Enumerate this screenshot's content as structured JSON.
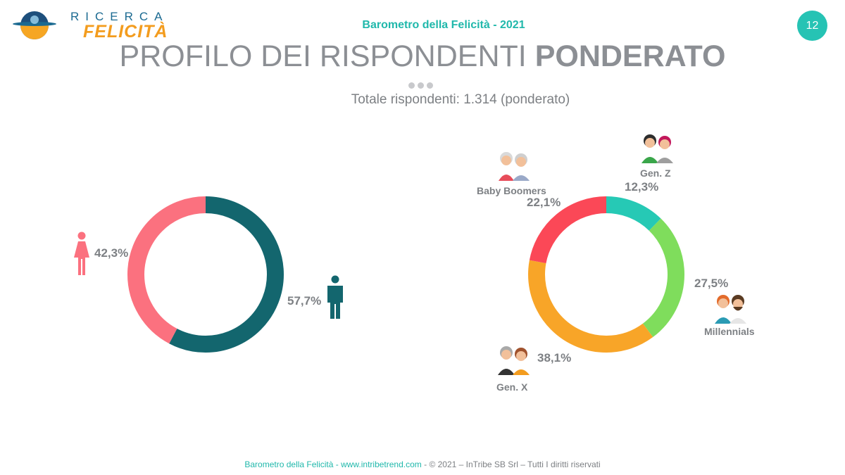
{
  "header": {
    "logo_line1": "RICERCA",
    "logo_line2": "FELICITÀ",
    "title": "Barometro della Felicità - 2021",
    "page_number": "12"
  },
  "slide": {
    "title_light": "PROFILO DEI RISPONDENTI ",
    "title_bold": "PONDERATO",
    "subtitle": "Totale rispondenti: 1.314 (ponderato)"
  },
  "chart_data": [
    {
      "type": "pie",
      "donut": true,
      "categories": [
        "Uomini",
        "Donne"
      ],
      "values": [
        57.7,
        42.3
      ],
      "labels": [
        "57,7%",
        "42,3%"
      ],
      "icons": [
        "male-icon",
        "female-icon"
      ],
      "colors": [
        "#13666e",
        "#fb717f"
      ]
    },
    {
      "type": "pie",
      "donut": true,
      "categories": [
        "Gen. Z",
        "Millennials",
        "Gen. X",
        "Baby Boomers"
      ],
      "values": [
        12.3,
        27.5,
        38.1,
        22.1
      ],
      "labels": [
        "12,3%",
        "27,5%",
        "38,1%",
        "22,1%"
      ],
      "icons": [
        "gen-z-avatars-icon",
        "millennials-avatars-icon",
        "gen-x-avatars-icon",
        "baby-boomers-avatars-icon"
      ],
      "colors": [
        "#26c9b5",
        "#7fdd5c",
        "#f8a528",
        "#fb4857"
      ]
    }
  ],
  "footer": {
    "part1": "Barometro della Felicità - www.intribetrend.com",
    "part2": " - © 2021 – InTribe SB Srl – Tutti I diritti riservati"
  }
}
